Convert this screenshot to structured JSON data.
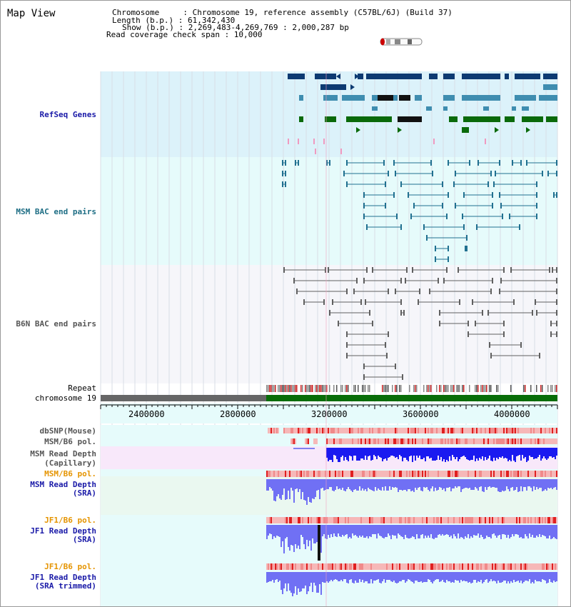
{
  "view_title": "Map View",
  "info": {
    "line1": "Chromosome     : Chromosome 19, reference assembly (C57BL/6J) (Build 37)",
    "line2": "Length (b.p.) : 61,342,430",
    "line3": "Show (b.p.) : 2,269,483-4,269,769 : 2,000,287 bp",
    "line4": "Read coverage check span : 10,000"
  },
  "tracks": {
    "refseq": "RefSeq Genes",
    "msm_bac": "MSM BAC end pairs",
    "b6n_bac": "B6N BAC end pairs",
    "repeat": "Repeat",
    "chromosome": "chromosome 19",
    "dbsnp": "dbSNP(Mouse)",
    "msm_pol1": "MSM/B6 pol.",
    "msm_depth_cap_1": "MSM Read Depth",
    "msm_depth_cap_2": "(Capillary)",
    "msm_pol2": "MSM/B6 pol.",
    "msm_depth_sra_1": "MSM Read Depth",
    "msm_depth_sra_2": "(SRA)",
    "jf1_pol1": "JF1/B6 pol.",
    "jf1_depth_sra_1": "JF1 Read Depth",
    "jf1_depth_sra_2": "(SRA)",
    "jf1_pol2": "JF1/B6 pol.",
    "jf1_depth_trim_1": "JF1 Read Depth",
    "jf1_depth_trim_2": "(SRA trimmed)"
  },
  "ruler": {
    "ticks": [
      "2400000",
      "2800000",
      "3200000",
      "3600000",
      "4000000"
    ]
  },
  "colors": {
    "refseq_bg": "#dcf2fa",
    "bac_bg": "#e6fbfb",
    "b6n_bg": "#f6f6fa",
    "gene_dark": "#0d3a72",
    "gene_mid": "#3f8db0",
    "gene_green": "#0a6a0a",
    "msm_line": "#207090",
    "b6n_line": "#606060",
    "chrom_grey": "#666666",
    "chrom_green": "#086d08",
    "snp_pink": "#f4b0b0",
    "depth_blue": "#1a1af0",
    "depth_light": "#7070f4",
    "label_blue": "#1a1aa8",
    "label_teal": "#1d6d84",
    "label_gray": "#555555",
    "label_orange": "#e59400"
  }
}
